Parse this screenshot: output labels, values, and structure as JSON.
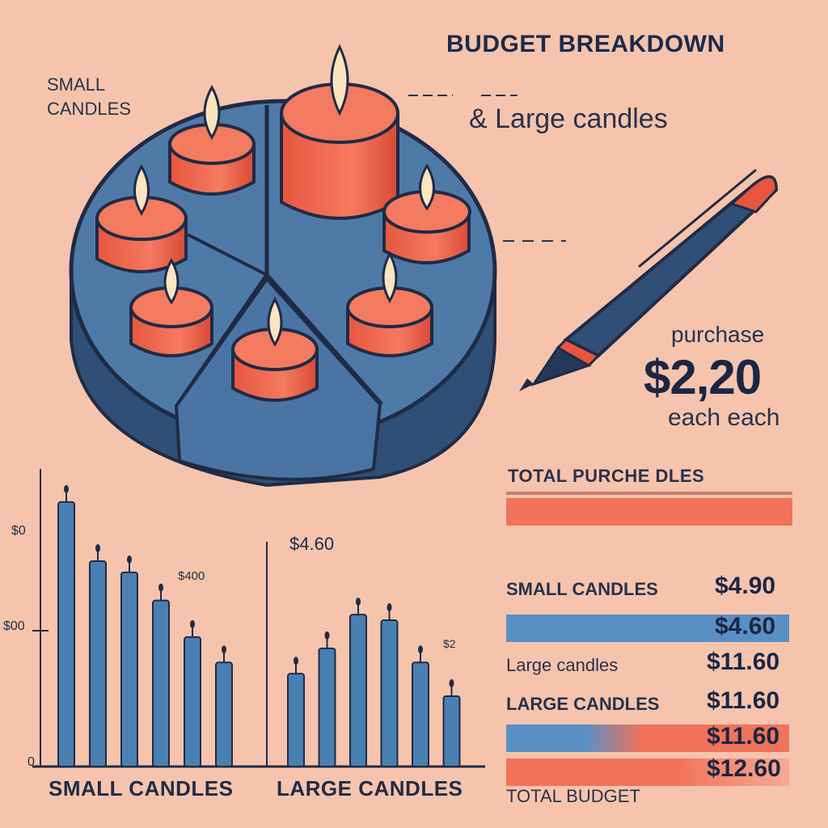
{
  "header": {
    "title": "BUDGET BREAKDOWN",
    "small_label": "SMALL CANDLES",
    "large_label": "& Large candles"
  },
  "purchase_panel": {
    "purchase_label": "purchase",
    "price": "$2,20",
    "each_label": "each each"
  },
  "summary": {
    "total_label": "TOTAL PURCHE DLES",
    "total_bar_color": "#f2725a",
    "rows": [
      {
        "label": "SMALL CANDLES",
        "value": "$4.90",
        "style": "bold"
      },
      {
        "label": "",
        "value": "$4.60",
        "style": "band-blue"
      },
      {
        "label": "Large candles",
        "value": "$11.60",
        "style": "normal"
      },
      {
        "label": "LARGE CANDLES",
        "value": "$11.60",
        "style": "bold"
      },
      {
        "label": "",
        "value": "$11.60",
        "style": "band-mixed"
      },
      {
        "label": "",
        "value": "$12.60",
        "style": "band-red"
      }
    ],
    "footer_label": "TOTAL BUDGET"
  },
  "chart_data": {
    "type": "bar",
    "xlabel_left": "SMALL CANDLES",
    "xlabel_right": "LARGE CANDLES",
    "y_ticks": [
      "$0",
      "$00",
      "0"
    ],
    "annotations": [
      "$4.60",
      "$400",
      "$2"
    ],
    "series": [
      {
        "values": [
          9.4,
          7.3,
          6.9,
          5.9,
          4.6,
          3.7
        ]
      },
      {
        "values": [
          3.3,
          4.2,
          5.4,
          5.2,
          3.7,
          2.5
        ]
      }
    ],
    "ylim": [
      0,
      10
    ],
    "colors": {
      "bar": "#4a7fb2",
      "bar_dark": "#2d5a8a",
      "wick": "#1f2b45"
    }
  },
  "colors": {
    "background": "#f6c4ad",
    "navy": "#1f2b45",
    "candle": "#f2725a",
    "blue_band": "#5a8fc4"
  }
}
